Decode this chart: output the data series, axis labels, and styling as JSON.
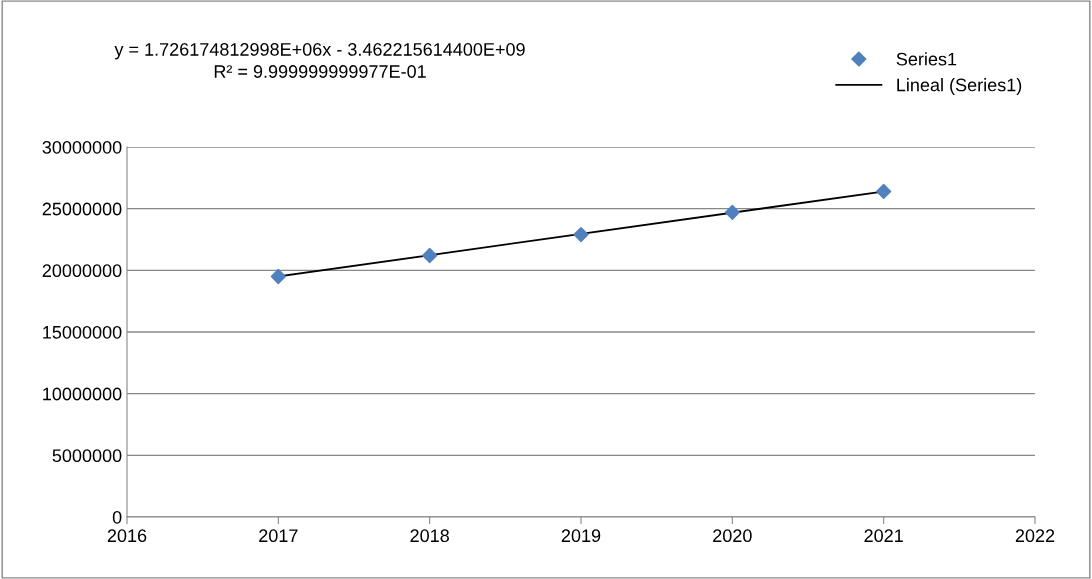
{
  "chart_data": {
    "type": "scatter",
    "x": [
      2017,
      2018,
      2019,
      2020,
      2021
    ],
    "series": [
      {
        "name": "Series1",
        "color": "#4f81bd",
        "marker": "diamond",
        "values": [
          19500000,
          21200000,
          22900000,
          24700000,
          26400000
        ]
      },
      {
        "name": "Lineal (Series1)",
        "type": "line",
        "color": "#000000",
        "marker": "none",
        "line_style": "solid",
        "x": [
          2017,
          2021
        ],
        "values": [
          19500000,
          26400000
        ]
      }
    ],
    "annotations": [
      "y = 1.726174812998E+06x - 3.462215614400E+09\nR² = 9.999999999977E-01"
    ],
    "xlim": [
      2016,
      2022
    ],
    "xticks": [
      2016,
      2017,
      2018,
      2019,
      2020,
      2021,
      2022
    ],
    "ylim": [
      0,
      30000000
    ],
    "yticks": [
      0,
      5000000,
      10000000,
      15000000,
      20000000,
      25000000,
      30000000
    ],
    "grid": "y",
    "legend": "top right"
  }
}
